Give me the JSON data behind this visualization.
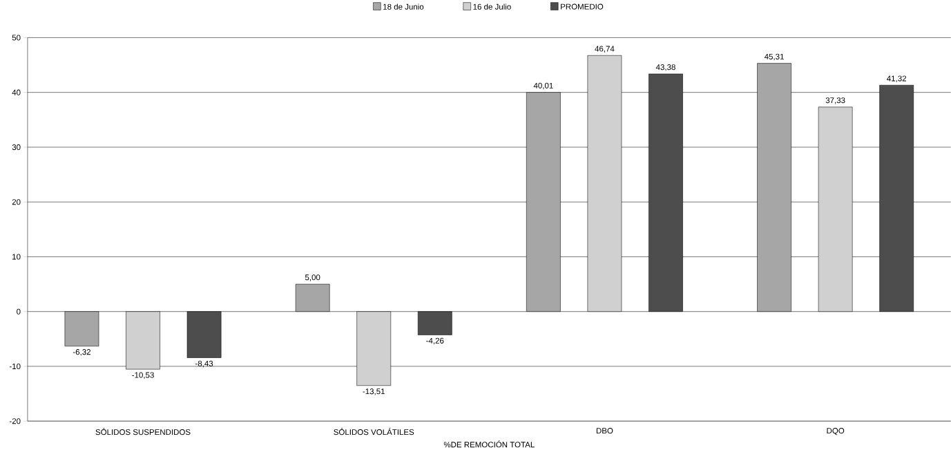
{
  "chart_data": {
    "type": "bar",
    "xlabel": "%DE REMOCIÓN TOTAL",
    "categories": [
      "SÓLIDOS SUSPENDIDOS",
      "SÓLIDOS VOLÁTILES",
      "DBO",
      "DQO"
    ],
    "series": [
      {
        "name": "18 de Junio",
        "color": "#a6a6a6",
        "values": [
          -6.32,
          5.0,
          40.01,
          45.31
        ],
        "value_labels": [
          "-6,32",
          "5,00",
          "40,01",
          "45,31"
        ]
      },
      {
        "name": "16 de Julio",
        "color": "#d0d0d0",
        "values": [
          -10.53,
          -13.51,
          46.74,
          37.33
        ],
        "value_labels": [
          "-10,53",
          "-13,51",
          "46,74",
          "37,33"
        ]
      },
      {
        "name": "PROMEDIO",
        "color": "#4d4d4d",
        "values": [
          -8.43,
          -4.26,
          43.38,
          41.32
        ],
        "value_labels": [
          "-8,43",
          "-4,26",
          "43,38",
          "41,32"
        ]
      }
    ],
    "ylim": [
      -20,
      50
    ],
    "yticks": [
      -20,
      -10,
      0,
      10,
      20,
      30,
      40,
      50
    ],
    "grid": "y",
    "legend": "top"
  }
}
